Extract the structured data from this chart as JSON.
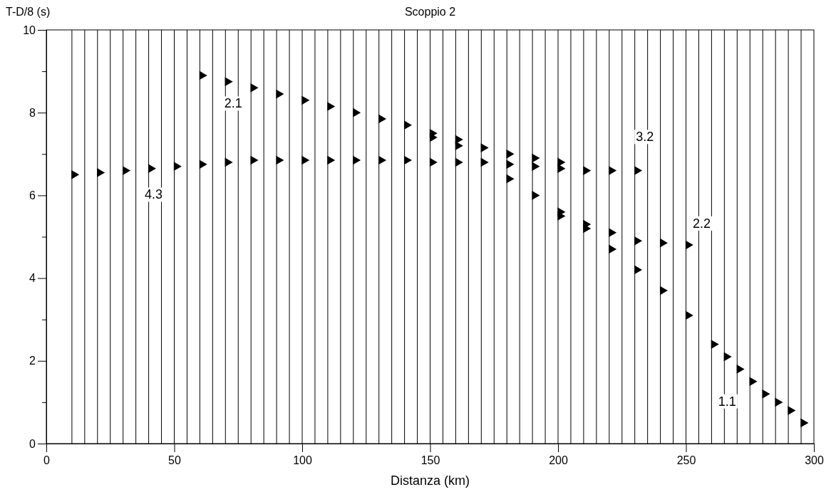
{
  "chart_data": {
    "type": "scatter",
    "title": "Scoppio 2",
    "xlabel": "Distanza (km)",
    "ylabel": "T-D/8 (s)",
    "marker": "triangle",
    "grid": false,
    "xlim": [
      0,
      300
    ],
    "xticks": [
      0,
      50,
      100,
      150,
      200,
      250,
      300
    ],
    "ylim": [
      0,
      10
    ],
    "yticks": [
      0,
      {
        "value": 1,
        "label": null
      },
      2,
      {
        "value": 3,
        "label": null
      },
      4,
      {
        "value": 5,
        "label": null
      },
      6,
      {
        "value": 7,
        "label": null
      },
      8,
      {
        "value": 9,
        "label": null
      },
      10
    ],
    "series": [
      {
        "color": "#000000",
        "x": [
          60,
          70,
          80,
          90,
          100,
          110,
          120,
          130,
          140,
          150,
          160,
          170,
          180,
          190,
          200
        ],
        "values": [
          8.9,
          8.75,
          8.6,
          8.45,
          8.3,
          8.15,
          8.0,
          7.85,
          7.7,
          7.5,
          7.35,
          7.15,
          7.0,
          6.9,
          6.8
        ]
      },
      {
        "color": "#000000",
        "x": [
          10,
          20,
          30,
          40,
          50,
          60,
          70,
          80,
          90,
          100,
          110,
          120,
          130,
          140,
          150,
          160,
          170,
          180,
          190,
          200,
          210,
          220,
          230
        ],
        "values": [
          6.5,
          6.55,
          6.6,
          6.65,
          6.7,
          6.75,
          6.8,
          6.85,
          6.85,
          6.85,
          6.85,
          6.85,
          6.85,
          6.85,
          6.8,
          6.8,
          null,
          6.75,
          6.7,
          6.65,
          6.6,
          6.6,
          6.6
        ]
      },
      {
        "color": "#000000",
        "x": [
          150,
          160,
          170,
          180,
          190,
          200,
          210,
          220,
          230,
          240,
          250,
          260,
          265,
          270,
          275,
          280,
          285,
          290,
          295
        ],
        "values": [
          7.4,
          7.2,
          6.8,
          6.4,
          6.0,
          5.6,
          5.2,
          4.7,
          4.2,
          3.7,
          3.1,
          2.4,
          2.1,
          1.8,
          1.5,
          1.2,
          1.0,
          0.8,
          0.5
        ]
      },
      {
        "color": "#000000",
        "x": [
          200,
          210,
          220,
          230,
          240,
          250
        ],
        "values": [
          5.5,
          5.3,
          5.1,
          4.9,
          4.85,
          4.8
        ]
      }
    ],
    "ref_lines": [
      {
        "axis": "x",
        "value": 10
      },
      {
        "axis": "x",
        "value": 15
      },
      {
        "axis": "x",
        "value": 20
      },
      {
        "axis": "x",
        "value": 25
      },
      {
        "axis": "x",
        "value": 30
      },
      {
        "axis": "x",
        "value": 35
      },
      {
        "axis": "x",
        "value": 40
      },
      {
        "axis": "x",
        "value": 45
      },
      {
        "axis": "x",
        "value": 50
      },
      {
        "axis": "x",
        "value": 55
      },
      {
        "axis": "x",
        "value": 60
      },
      {
        "axis": "x",
        "value": 65
      },
      {
        "axis": "x",
        "value": 70
      },
      {
        "axis": "x",
        "value": 75
      },
      {
        "axis": "x",
        "value": 80
      },
      {
        "axis": "x",
        "value": 85
      },
      {
        "axis": "x",
        "value": 90
      },
      {
        "axis": "x",
        "value": 95
      },
      {
        "axis": "x",
        "value": 100
      },
      {
        "axis": "x",
        "value": 105
      },
      {
        "axis": "x",
        "value": 110
      },
      {
        "axis": "x",
        "value": 115
      },
      {
        "axis": "x",
        "value": 120
      },
      {
        "axis": "x",
        "value": 125
      },
      {
        "axis": "x",
        "value": 130
      },
      {
        "axis": "x",
        "value": 135
      },
      {
        "axis": "x",
        "value": 140
      },
      {
        "axis": "x",
        "value": 145
      },
      {
        "axis": "x",
        "value": 150
      },
      {
        "axis": "x",
        "value": 155
      },
      {
        "axis": "x",
        "value": 160
      },
      {
        "axis": "x",
        "value": 165
      },
      {
        "axis": "x",
        "value": 170
      },
      {
        "axis": "x",
        "value": 175
      },
      {
        "axis": "x",
        "value": 180
      },
      {
        "axis": "x",
        "value": 185
      },
      {
        "axis": "x",
        "value": 190
      },
      {
        "axis": "x",
        "value": 195
      },
      {
        "axis": "x",
        "value": 200
      },
      {
        "axis": "x",
        "value": 205
      },
      {
        "axis": "x",
        "value": 210
      },
      {
        "axis": "x",
        "value": 215
      },
      {
        "axis": "x",
        "value": 220
      },
      {
        "axis": "x",
        "value": 225
      },
      {
        "axis": "x",
        "value": 230
      },
      {
        "axis": "x",
        "value": 235
      },
      {
        "axis": "x",
        "value": 240
      },
      {
        "axis": "x",
        "value": 245
      },
      {
        "axis": "x",
        "value": 250
      },
      {
        "axis": "x",
        "value": 255
      },
      {
        "axis": "x",
        "value": 260
      },
      {
        "axis": "x",
        "value": 265
      },
      {
        "axis": "x",
        "value": 270
      },
      {
        "axis": "x",
        "value": 275
      },
      {
        "axis": "x",
        "value": 280
      },
      {
        "axis": "x",
        "value": 285
      },
      {
        "axis": "x",
        "value": 290
      },
      {
        "axis": "x",
        "value": 295
      }
    ],
    "annotations": [
      {
        "text": "2.1",
        "x": 70,
        "y": 8.75
      },
      {
        "text": "4.3",
        "x": 40,
        "y": 6.65
      },
      {
        "text": "3.2",
        "x": 230,
        "y": 6.6
      },
      {
        "text": "2.2",
        "x": 250,
        "y": 4.8
      },
      {
        "text": "1.1",
        "x": 265,
        "y": 2.1
      }
    ]
  }
}
